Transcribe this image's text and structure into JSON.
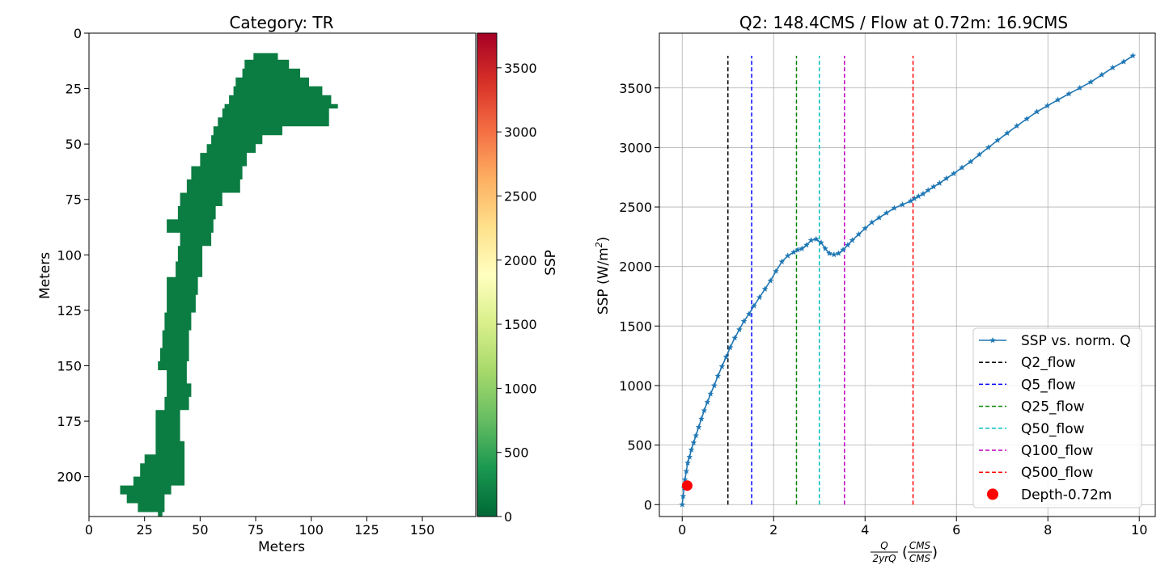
{
  "chart_data": [
    {
      "type": "heatmap",
      "title": "Category: TR",
      "xlabel": "Meters",
      "ylabel": "Meters",
      "xlim": [
        0,
        174
      ],
      "ylim": [
        218,
        0
      ],
      "xticks": [
        0,
        25,
        50,
        75,
        100,
        125,
        150
      ],
      "yticks": [
        0,
        25,
        50,
        75,
        100,
        125,
        150,
        175,
        200
      ],
      "colormap": "RdYlGn_r",
      "colorbar": {
        "label": "SSP",
        "range": [
          0,
          3770
        ],
        "ticks": [
          0,
          500,
          1000,
          1500,
          2000,
          2500,
          3000,
          3500
        ],
        "stops": [
          "#006837",
          "#1a9850",
          "#66bd63",
          "#a6d96a",
          "#d9ef8b",
          "#ffffbf",
          "#fee08b",
          "#fdae61",
          "#f46d43",
          "#d73027",
          "#a50026"
        ]
      },
      "cell_value": 160,
      "region_rows": [
        {
          "y": 9,
          "x0": 78,
          "x1": 79
        },
        {
          "y": 12,
          "x0": 74,
          "x1": 85
        },
        {
          "y": 16,
          "x0": 70,
          "x1": 90
        },
        {
          "y": 20,
          "x0": 69,
          "x1": 95
        },
        {
          "y": 24,
          "x0": 66,
          "x1": 99
        },
        {
          "y": 28,
          "x0": 65,
          "x1": 105
        },
        {
          "y": 32,
          "x0": 63,
          "x1": 109
        },
        {
          "y": 34,
          "x0": 61,
          "x1": 112
        },
        {
          "y": 38,
          "x0": 60,
          "x1": 108
        },
        {
          "y": 42,
          "x0": 58,
          "x1": 108
        },
        {
          "y": 46,
          "x0": 56,
          "x1": 87
        },
        {
          "y": 50,
          "x0": 55,
          "x1": 78
        },
        {
          "y": 54,
          "x0": 53,
          "x1": 75
        },
        {
          "y": 60,
          "x0": 50,
          "x1": 71
        },
        {
          "y": 66,
          "x0": 46,
          "x1": 69
        },
        {
          "y": 72,
          "x0": 44,
          "x1": 68
        },
        {
          "y": 78,
          "x0": 41,
          "x1": 60
        },
        {
          "y": 84,
          "x0": 40,
          "x1": 57
        },
        {
          "y": 90,
          "x0": 35,
          "x1": 56
        },
        {
          "y": 96,
          "x0": 41,
          "x1": 55
        },
        {
          "y": 103,
          "x0": 40,
          "x1": 51
        },
        {
          "y": 110,
          "x0": 39,
          "x1": 51
        },
        {
          "y": 118,
          "x0": 35,
          "x1": 49
        },
        {
          "y": 126,
          "x0": 35,
          "x1": 48
        },
        {
          "y": 134,
          "x0": 34,
          "x1": 46
        },
        {
          "y": 142,
          "x0": 33,
          "x1": 45
        },
        {
          "y": 148,
          "x0": 32,
          "x1": 45
        },
        {
          "y": 152,
          "x0": 31,
          "x1": 44
        },
        {
          "y": 158,
          "x0": 35,
          "x1": 44
        },
        {
          "y": 164,
          "x0": 35,
          "x1": 46
        },
        {
          "y": 170,
          "x0": 34,
          "x1": 45
        },
        {
          "y": 176,
          "x0": 30,
          "x1": 41
        },
        {
          "y": 184,
          "x0": 30,
          "x1": 41
        },
        {
          "y": 190,
          "x0": 30,
          "x1": 43
        },
        {
          "y": 194,
          "x0": 25,
          "x1": 43
        },
        {
          "y": 200,
          "x0": 23,
          "x1": 43
        },
        {
          "y": 204,
          "x0": 20,
          "x1": 43
        },
        {
          "y": 208,
          "x0": 14,
          "x1": 37
        },
        {
          "y": 212,
          "x0": 17,
          "x1": 34
        },
        {
          "y": 216,
          "x0": 22,
          "x1": 34
        },
        {
          "y": 218,
          "x0": 31,
          "x1": 33
        }
      ]
    },
    {
      "type": "line",
      "title": "Q2: 148.4CMS / Flow at 0.72m: 16.9CMS",
      "xlabel_fraction_num": "Q",
      "xlabel_fraction_den": "2yrQ",
      "xlabel_unit_num": "CMS",
      "xlabel_unit_den": "CMS",
      "ylabel": "SSP (W/m",
      "ylabel_sup": "2",
      "ylabel_close": ")",
      "xlim": [
        -0.5,
        10.35
      ],
      "ylim": [
        -100,
        3960
      ],
      "xticks": [
        0,
        2,
        4,
        6,
        8,
        10
      ],
      "yticks": [
        0,
        500,
        1000,
        1500,
        2000,
        2500,
        3000,
        3500
      ],
      "grid": true,
      "legend_position": "lower right",
      "series": [
        {
          "name": "SSP vs. norm. Q",
          "color": "#1f77b4",
          "marker": "star",
          "x": [
            0.0,
            0.02,
            0.04,
            0.06,
            0.09,
            0.12,
            0.16,
            0.2,
            0.25,
            0.3,
            0.36,
            0.42,
            0.48,
            0.55,
            0.62,
            0.7,
            0.78,
            0.87,
            0.96,
            1.05,
            1.15,
            1.25,
            1.35,
            1.46,
            1.57,
            1.69,
            1.81,
            1.93,
            2.05,
            2.18,
            2.31,
            2.44,
            2.53,
            2.62,
            2.72,
            2.82,
            2.93,
            3.04,
            3.13,
            3.22,
            3.32,
            3.42,
            3.52,
            3.62,
            3.72,
            3.86,
            4.0,
            4.15,
            4.31,
            4.47,
            4.64,
            4.82,
            5.0,
            5.08,
            5.17,
            5.27,
            5.38,
            5.5,
            5.63,
            5.78,
            5.94,
            6.12,
            6.31,
            6.5,
            6.7,
            6.9,
            7.11,
            7.32,
            7.54,
            7.76,
            7.99,
            8.22,
            8.46,
            8.7,
            8.94,
            9.18,
            9.42,
            9.66,
            9.86
          ],
          "y": [
            0,
            70,
            140,
            210,
            280,
            350,
            400,
            460,
            520,
            580,
            650,
            720,
            790,
            860,
            930,
            1000,
            1080,
            1160,
            1240,
            1320,
            1400,
            1470,
            1540,
            1600,
            1670,
            1740,
            1810,
            1880,
            1960,
            2040,
            2090,
            2120,
            2140,
            2150,
            2180,
            2220,
            2230,
            2200,
            2150,
            2110,
            2100,
            2110,
            2140,
            2180,
            2220,
            2270,
            2320,
            2370,
            2410,
            2450,
            2490,
            2520,
            2550,
            2570,
            2590,
            2610,
            2640,
            2670,
            2700,
            2740,
            2780,
            2830,
            2880,
            2940,
            3000,
            3060,
            3120,
            3180,
            3240,
            3300,
            3350,
            3400,
            3450,
            3500,
            3550,
            3610,
            3670,
            3720,
            3770
          ]
        }
      ],
      "vlines": [
        {
          "name": "Q2_flow",
          "x": 1.0,
          "color": "#000000"
        },
        {
          "name": "Q5_flow",
          "x": 1.52,
          "color": "#0000ff"
        },
        {
          "name": "Q25_flow",
          "x": 2.5,
          "color": "#008000"
        },
        {
          "name": "Q50_flow",
          "x": 3.0,
          "color": "#00bfbf"
        },
        {
          "name": "Q100_flow",
          "x": 3.55,
          "color": "#bf00bf"
        },
        {
          "name": "Q500_flow",
          "x": 5.05,
          "color": "#ff0000"
        }
      ],
      "vline_ymax": 3770,
      "point": {
        "name": "Depth-0.72m",
        "x": 0.11,
        "y": 160,
        "color": "#ff0000"
      }
    }
  ]
}
